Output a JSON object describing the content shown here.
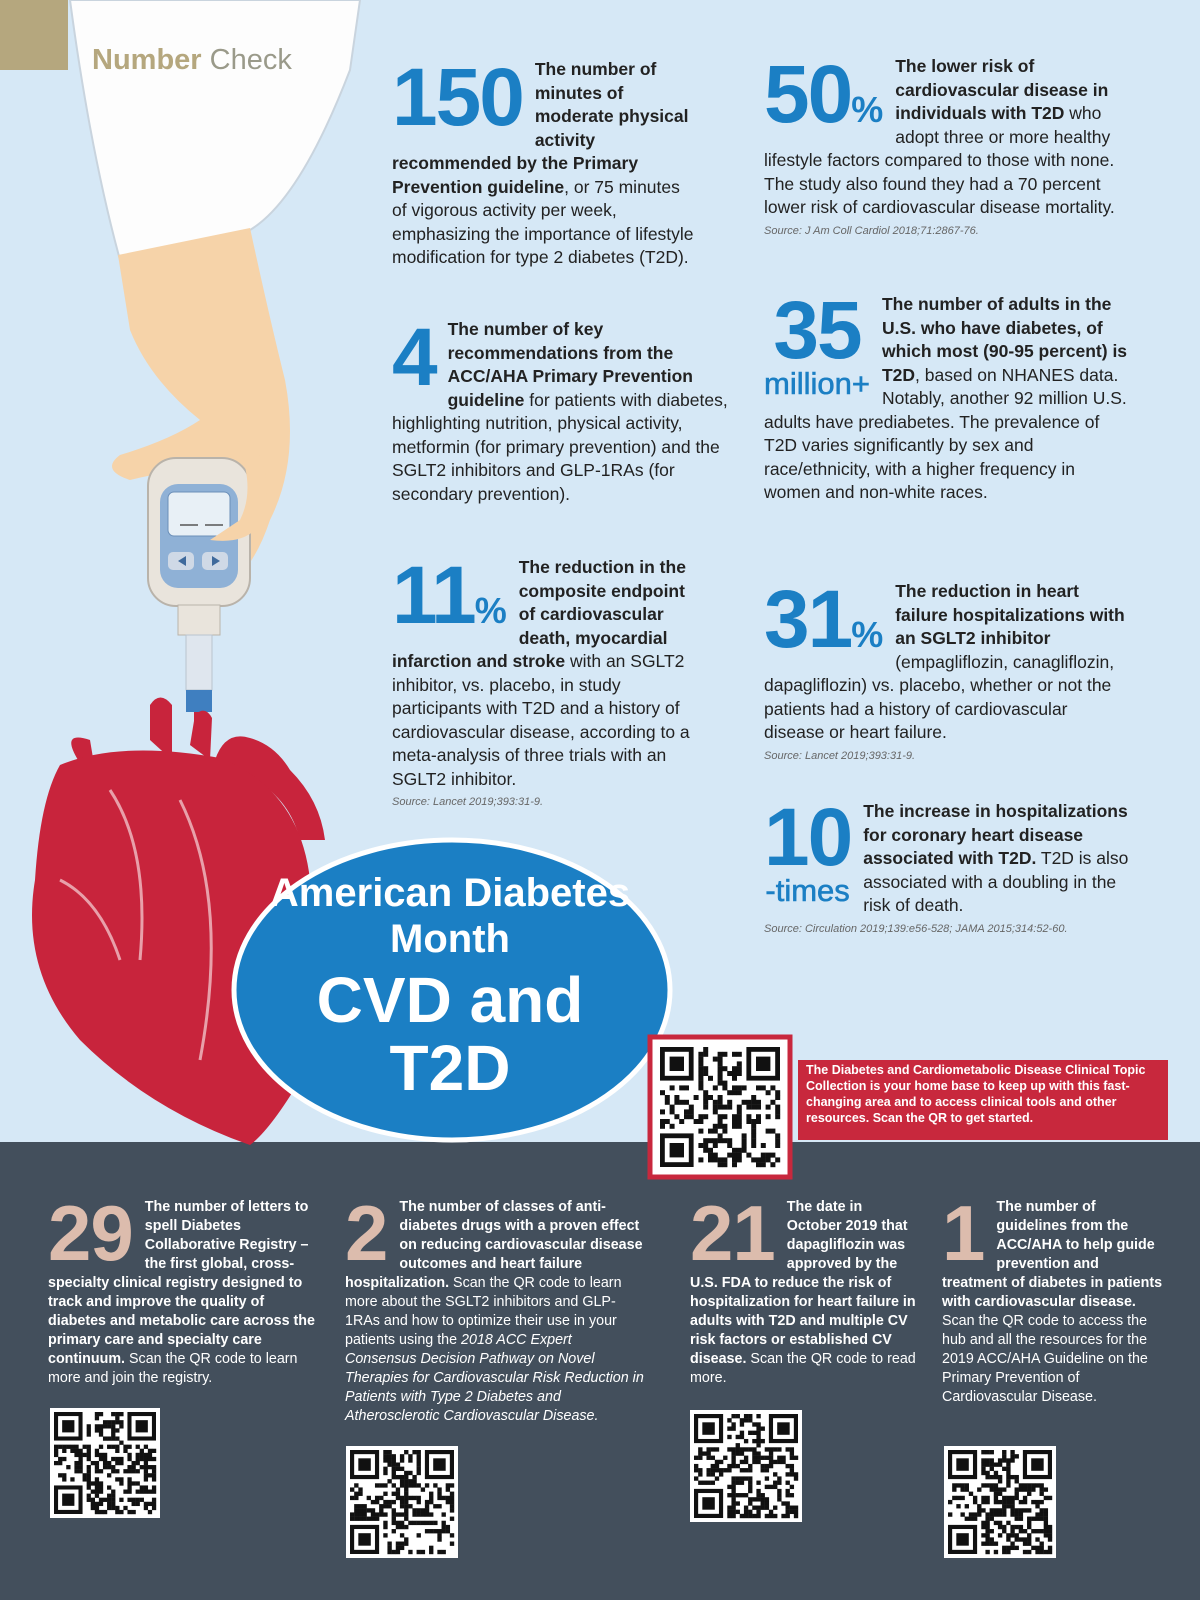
{
  "header": {
    "brand_strong": "Number",
    "brand_light": "Check"
  },
  "facts": [
    {
      "number": "150",
      "lead": "The number of minutes of moderate physical activity recommended by the Primary Prevention guideline",
      "body": ", or 75 minutes of vigorous activity per week, emphasizing the importance of lifestyle modification for type 2 diabetes (T2D)."
    },
    {
      "number": "4",
      "lead": "The number of key recommendations from the ACC/AHA Primary Prevention guideline",
      "body": " for patients with diabetes, highlighting nutrition, physical activity, metformin (for primary prevention) and the SGLT2 inhibitors and GLP-1RAs (for secondary prevention)."
    },
    {
      "number": "11",
      "unit": "%",
      "lead": "The reduction in the composite endpoint of cardiovascular death, myocardial infarction and stroke",
      "body": " with an SGLT2 inhibitor, vs. placebo, in study participants with T2D and a history of cardiovascular disease, according to a meta-analysis of three trials with an SGLT2 inhibitor.",
      "source": "Source: Lancet 2019;393:31-9."
    },
    {
      "number": "50",
      "unit": "%",
      "lead": "The lower risk of cardiovascular disease in individuals with T2D",
      "body": " who adopt three or more healthy lifestyle factors compared to those with none. The study also found they had a 70 percent lower risk of cardiovascular disease mortality.",
      "source": "Source: J Am Coll Cardiol 2018;71:2867-76."
    },
    {
      "number": "35",
      "unit": "million+",
      "lead": "The number of adults in the U.S. who have diabetes, of which most (90-95 percent) is T2D",
      "body": ", based on NHANES data. Notably, another 92 million U.S. adults have prediabetes. The prevalence of T2D varies significantly by sex and race/ethnicity, with a higher frequency in women and non-white races."
    },
    {
      "number": "31",
      "unit": "%",
      "lead": "The reduction in heart failure hospitalizations with an SGLT2 inhibitor",
      "body": " (empagliflozin, canagliflozin, dapagliflozin) vs. placebo, whether or not the patients had a history of cardiovascular disease or heart failure.",
      "source": "Source: Lancet 2019;393:31-9."
    },
    {
      "number": "10",
      "unit": "-times",
      "lead": "The increase in hospitalizations for coronary heart disease associated with T2D.",
      "body": " T2D is also associated with a doubling in the risk of death.",
      "source": "Source: Circulation 2019;139:e56-528; JAMA 2015;314:52-60."
    }
  ],
  "feature": {
    "kicker": "American Diabetes Month",
    "title": "CVD and T2D"
  },
  "promo": {
    "text": "The Diabetes and Cardiometabolic Disease Clinical Topic Collection is your home base to keep up with this fast-changing area and to access clinical tools and other resources. Scan the QR to get started."
  },
  "highlights": [
    {
      "number": "29",
      "lead": "The number of letters to spell Diabetes Collaborative Registry – the first global, cross-specialty clinical registry designed to track and improve the quality of diabetes and metabolic care across the primary care and specialty care continuum.",
      "body": " Scan the QR code to learn more and join the registry."
    },
    {
      "number": "2",
      "lead": "The number of classes of anti-diabetes drugs with a proven effect on reducing cardiovascular disease outcomes and heart failure hospitalization.",
      "body": " Scan the QR code to learn more about the SGLT2 inhibitors and GLP-1RAs and how to optimize their use in your patients using the ",
      "italic": "2018 ACC Expert Consensus Decision Pathway on Novel Therapies for Cardiovascular Risk Reduction in Patients with Type 2 Diabetes and Atherosclerotic Cardiovascular Disease."
    },
    {
      "number": "21",
      "lead": "The date in October 2019 that dapagliflozin was approved by the U.S. FDA to reduce the risk of hospitalization for heart failure in adults with T2D and multiple CV risk factors or established CV disease.",
      "body": " Scan the QR code to read more."
    },
    {
      "number": "1",
      "lead": "The number of guidelines from the ACC/AHA to help guide prevention and treatment of diabetes in patients with cardiovascular disease.",
      "body": " Scan the QR code to access the hub and all the resources for the 2019 ACC/AHA Guideline on the Primary Prevention of Cardiovascular Disease."
    }
  ]
}
